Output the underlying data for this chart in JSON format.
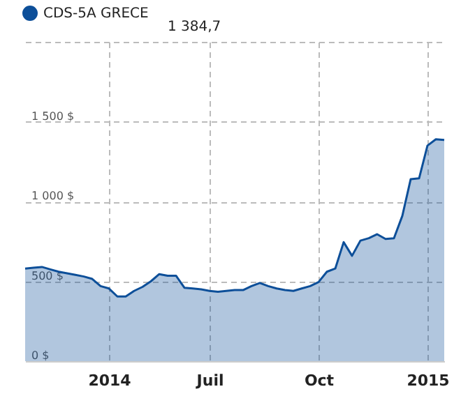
{
  "chart_data": {
    "type": "area",
    "categories": [
      null,
      null,
      null,
      null,
      null,
      null,
      null,
      null,
      null,
      null,
      "2014",
      null,
      null,
      null,
      null,
      null,
      null,
      null,
      null,
      null,
      null,
      null,
      "Juil",
      null,
      null,
      null,
      null,
      null,
      null,
      null,
      null,
      null,
      null,
      null,
      null,
      "Oct",
      null,
      null,
      null,
      null,
      null,
      null,
      null,
      null,
      null,
      null,
      null,
      null,
      "2015",
      null,
      null
    ],
    "series": [
      {
        "name": "CDS-5A GRECE",
        "color": "#0d4f99",
        "values": [
          580,
          585,
          590,
          575,
          560,
          550,
          540,
          530,
          515,
          470,
          455,
          405,
          405,
          440,
          465,
          500,
          545,
          535,
          535,
          460,
          455,
          450,
          440,
          435,
          440,
          445,
          445,
          470,
          490,
          470,
          455,
          445,
          440,
          455,
          470,
          495,
          560,
          580,
          745,
          660,
          755,
          770,
          795,
          765,
          770,
          910,
          1140,
          1145,
          1350,
          1390,
          1385
        ]
      }
    ],
    "ylim": [
      0,
      2000
    ],
    "yticks": [
      {
        "value": 0,
        "label": "0 $"
      },
      {
        "value": 500,
        "label": "500 $"
      },
      {
        "value": 1000,
        "label": "1 000 $"
      },
      {
        "value": 1500,
        "label": "1 500 $"
      },
      {
        "value": 2000,
        "label": null
      }
    ],
    "grid": true,
    "legend": "top left",
    "annotations": [
      "1 384,7"
    ]
  }
}
